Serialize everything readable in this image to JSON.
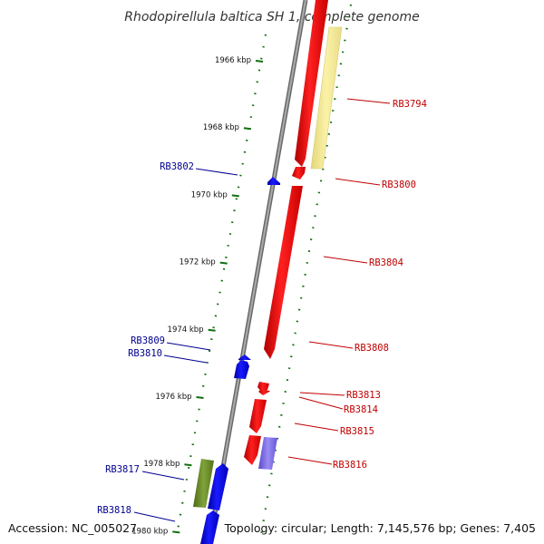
{
  "title": "Rhodopirellula baltica SH 1, complete genome",
  "accession": "Accession: NC_005027",
  "topology": "Topology: circular; Length: 7,145,576 bp; Genes: 7,405",
  "ticks": [
    {
      "label": "1966 kbp",
      "kbp": 1966
    },
    {
      "label": "1968 kbp",
      "kbp": 1968
    },
    {
      "label": "1970 kbp",
      "kbp": 1970
    },
    {
      "label": "1972 kbp",
      "kbp": 1972
    },
    {
      "label": "1974 kbp",
      "kbp": 1974
    },
    {
      "label": "1976 kbp",
      "kbp": 1976
    },
    {
      "label": "1978 kbp",
      "kbp": 1978
    },
    {
      "label": "1980 kbp",
      "kbp": 1980
    }
  ],
  "genes_left": [
    {
      "label": "RB3802"
    },
    {
      "label": "RB3809"
    },
    {
      "label": "RB3810"
    },
    {
      "label": "RB3817"
    },
    {
      "label": "RB3818"
    }
  ],
  "genes_right": [
    {
      "label": "RB3794"
    },
    {
      "label": "RB3800"
    },
    {
      "label": "RB3804"
    },
    {
      "label": "RB3808"
    },
    {
      "label": "RB3813"
    },
    {
      "label": "RB3814"
    },
    {
      "label": "RB3815"
    },
    {
      "label": "RB3816"
    }
  ],
  "colors": {
    "reverse_strand": "#0000e0",
    "forward_strand": "#e00000",
    "label_left": "#000090",
    "label_right": "#c00000",
    "tick": "#107010",
    "backbone": "#8a8a8a",
    "yellow_feature": "#f0e68c",
    "green_feature": "#6b8e23",
    "purple_feature": "#7b68ee"
  }
}
